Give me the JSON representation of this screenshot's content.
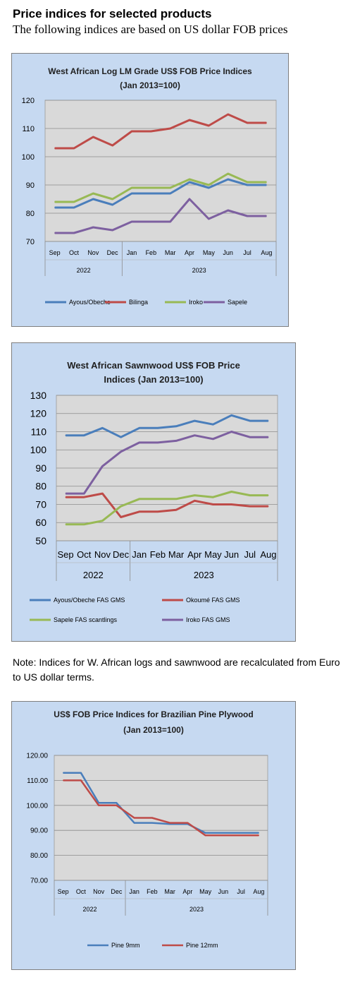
{
  "page": {
    "heading": "Price indices for selected products",
    "subheading": "The following indices are based on US dollar FOB prices",
    "note": "Note: Indices for W. African logs and sawnwood are recalculated from Euro to US dollar terms."
  },
  "chart_data": [
    {
      "type": "line",
      "title_lines": [
        "West African Log LM Grade US$ FOB Price Indices",
        "(Jan 2013=100)"
      ],
      "categories": [
        "Sep",
        "Oct",
        "Nov",
        "Dec",
        "Jan",
        "Feb",
        "Mar",
        "Apr",
        "May",
        "Jun",
        "Jul",
        "Aug"
      ],
      "year_groups": [
        {
          "label": "2022",
          "count": 4
        },
        {
          "label": "2023",
          "count": 8
        }
      ],
      "ylim": [
        70,
        120
      ],
      "yticks": [
        70,
        80,
        90,
        100,
        110,
        120
      ],
      "grid": true,
      "legend": "bottom",
      "series": [
        {
          "name": "Ayous/Obeche",
          "color": "#4a7ebb",
          "values": [
            82,
            82,
            85,
            83,
            87,
            87,
            87,
            91,
            89,
            92,
            90,
            90
          ]
        },
        {
          "name": "Bilinga",
          "color": "#be4b48",
          "values": [
            103,
            103,
            107,
            104,
            109,
            109,
            110,
            113,
            111,
            115,
            112,
            112
          ]
        },
        {
          "name": "Iroko",
          "color": "#98b954",
          "values": [
            84,
            84,
            87,
            85,
            89,
            89,
            89,
            92,
            90,
            94,
            91,
            91
          ]
        },
        {
          "name": "Sapele",
          "color": "#7d60a0",
          "values": [
            73,
            73,
            75,
            74,
            77,
            77,
            77,
            85,
            78,
            81,
            79,
            79
          ]
        }
      ]
    },
    {
      "type": "line",
      "title_lines": [
        "West African Sawnwood US$ FOB Price",
        "Indices (Jan 2013=100)"
      ],
      "categories": [
        "Sep",
        "Oct",
        "Nov",
        "Dec",
        "Jan",
        "Feb",
        "Mar",
        "Apr",
        "May",
        "Jun",
        "Jul",
        "Aug"
      ],
      "year_groups": [
        {
          "label": "2022",
          "count": 4
        },
        {
          "label": "2023",
          "count": 8
        }
      ],
      "ylim": [
        50,
        130
      ],
      "yticks": [
        50,
        60,
        70,
        80,
        90,
        100,
        110,
        120,
        130
      ],
      "grid": true,
      "legend": "bottom",
      "series": [
        {
          "name": "Ayous/Obeche  FAS GMS",
          "color": "#4a7ebb",
          "values": [
            108,
            108,
            112,
            107,
            112,
            112,
            113,
            116,
            114,
            119,
            116,
            116
          ]
        },
        {
          "name": "Okoumé  FAS GMS",
          "color": "#be4b48",
          "values": [
            74,
            74,
            76,
            63,
            66,
            66,
            67,
            72,
            70,
            70,
            69,
            69
          ]
        },
        {
          "name": "Sapele FAS scantlings",
          "color": "#98b954",
          "values": [
            59,
            59,
            61,
            69,
            73,
            73,
            73,
            75,
            74,
            77,
            75,
            75
          ]
        },
        {
          "name": "Iroko FAS GMS",
          "color": "#7d60a0",
          "values": [
            76,
            76,
            91,
            99,
            104,
            104,
            105,
            108,
            106,
            110,
            107,
            107
          ]
        }
      ]
    },
    {
      "type": "line",
      "title_lines": [
        "US$ FOB Price Indices for Brazilian  Pine Plywood",
        "(Jan 2013=100)"
      ],
      "categories": [
        "Sep",
        "Oct",
        "Nov",
        "Dec",
        "Jan",
        "Feb",
        "Mar",
        "Apr",
        "May",
        "Jun",
        "Jul",
        "Aug"
      ],
      "year_groups": [
        {
          "label": "2022",
          "count": 4
        },
        {
          "label": "2023",
          "count": 8
        }
      ],
      "ylim": [
        70,
        120
      ],
      "yticks": [
        "70.00",
        "80.00",
        "90.00",
        "100.00",
        "110.00",
        "120.00"
      ],
      "grid": true,
      "legend": "bottom",
      "series": [
        {
          "name": "Pine 9mm",
          "color": "#4a7ebb",
          "values": [
            113,
            113,
            101,
            101,
            93,
            93,
            92.5,
            92.5,
            89,
            89,
            89,
            89
          ]
        },
        {
          "name": "Pine 12mm",
          "color": "#be4b48",
          "values": [
            110,
            110,
            100,
            100,
            95,
            95,
            93,
            93,
            88,
            88,
            88,
            88
          ]
        }
      ]
    }
  ]
}
